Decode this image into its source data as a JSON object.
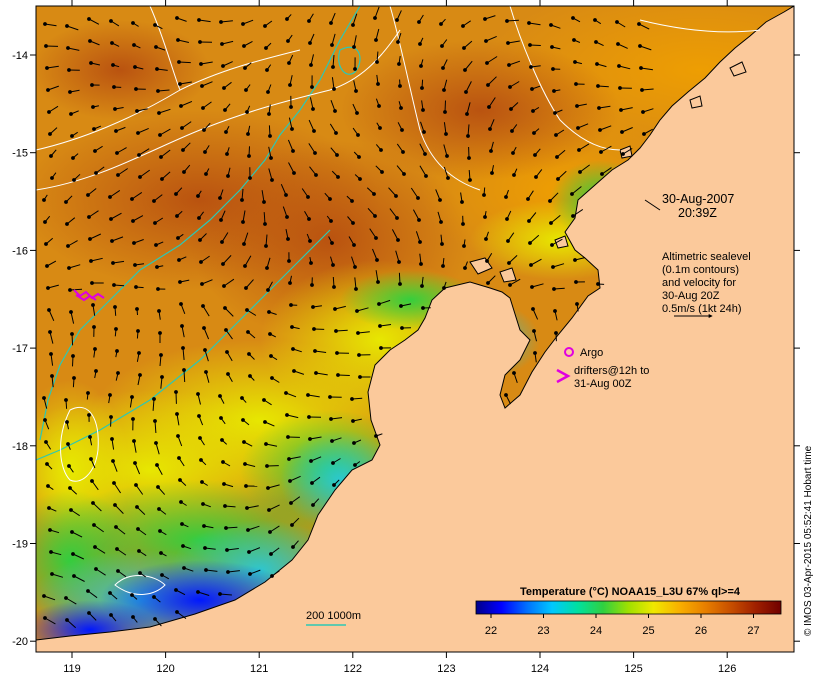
{
  "map": {
    "date_label": "30-Aug-2007",
    "time_label": "20:39Z",
    "altimetry_lines": [
      "Altimetric sealevel",
      "(0.1m contours)",
      "and velocity for",
      "30-Aug 20Z",
      "0.5m/s (1kt 24h)"
    ],
    "argo_label": "Argo",
    "drifters_lines": [
      "drifters@12h to",
      "31-Aug 00Z"
    ],
    "isobath_label": "200  1000m",
    "credit": "© IMOS 03-Apr-2015 05:52:41 Hobart time",
    "x_ticks": [
      "119",
      "120",
      "121",
      "122",
      "123",
      "124",
      "125",
      "126"
    ],
    "y_ticks": [
      "-14",
      "-15",
      "-16",
      "-17",
      "-18",
      "-19",
      "-20"
    ],
    "colorbar": {
      "title": "Temperature (°C) NOAA15_L3U 67% ql>=4",
      "ticks": [
        "22",
        "23",
        "24",
        "25",
        "26",
        "27"
      ],
      "colors": [
        "#00008a",
        "#0000ff",
        "#0070ff",
        "#00c8ff",
        "#00e0a0",
        "#30d040",
        "#a0e000",
        "#f0e800",
        "#f8b000",
        "#e88000",
        "#c85000",
        "#a02000",
        "#700000"
      ]
    },
    "colors": {
      "land": "#fbc99b",
      "coast": "#000000",
      "isobath": "#2cc8b4",
      "sealevel_contour": "#ffffff",
      "argo": "#e000e0"
    }
  }
}
